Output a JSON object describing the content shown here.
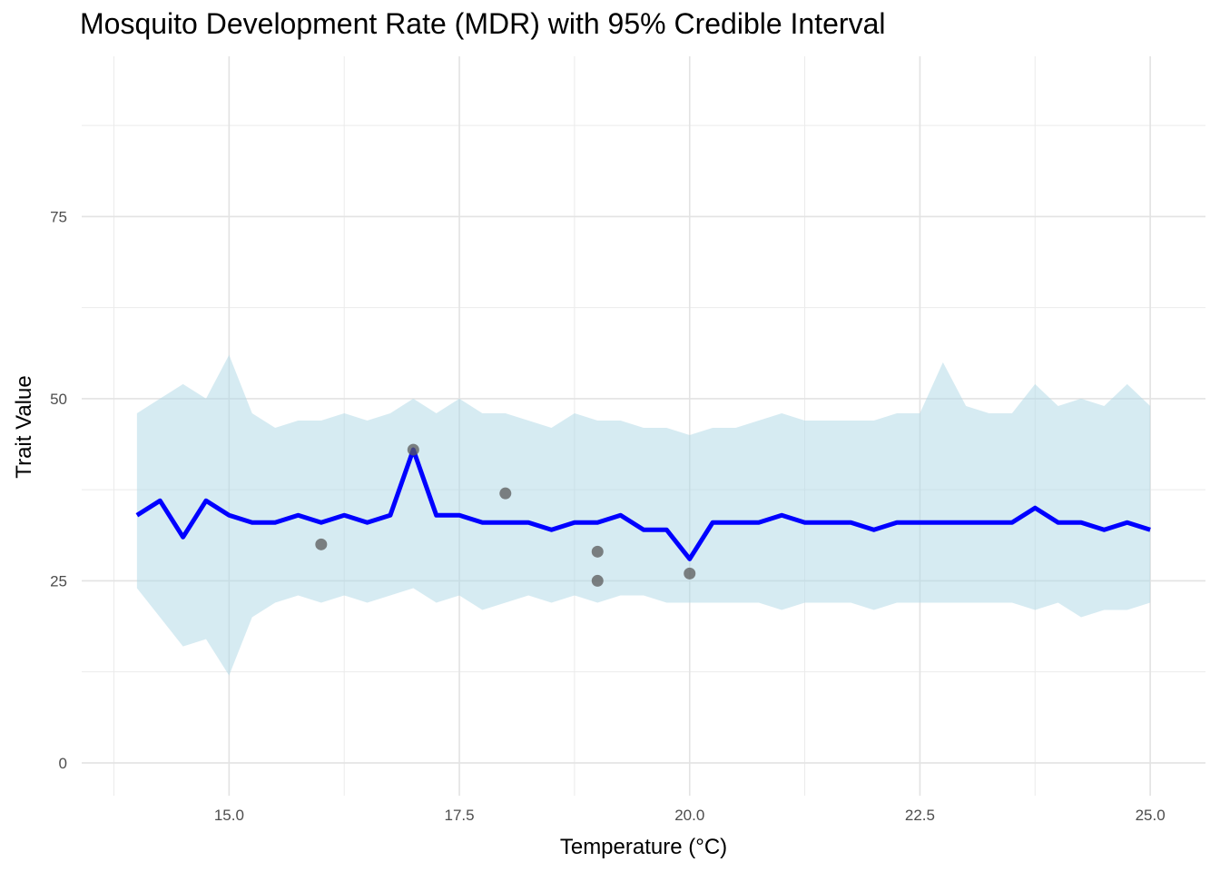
{
  "chart_data": {
    "type": "line",
    "title": "Mosquito Development Rate (MDR) with 95% Credible Interval",
    "xlabel": "Temperature (°C)",
    "ylabel": "Trait Value",
    "xlim": [
      13.4,
      25.6
    ],
    "ylim": [
      -4.5,
      97
    ],
    "x_ticks": [
      15.0,
      17.5,
      20.0,
      22.5,
      25.0
    ],
    "x_tick_labels": [
      "15.0",
      "17.5",
      "20.0",
      "22.5",
      "25.0"
    ],
    "y_ticks": [
      0,
      25,
      50,
      75
    ],
    "y_tick_labels": [
      "0",
      "25",
      "50",
      "75"
    ],
    "grid": true,
    "legend": "none",
    "ribbon_color": "#ADD8E6",
    "line_color": "#0000FF",
    "point_color": "#5a5a5a",
    "series": [
      {
        "kind": "line-with-ribbon",
        "x": [
          14.0,
          14.25,
          14.5,
          14.75,
          15.0,
          15.25,
          15.5,
          15.75,
          16.0,
          16.25,
          16.5,
          16.75,
          17.0,
          17.25,
          17.5,
          17.75,
          18.0,
          18.25,
          18.5,
          18.75,
          19.0,
          19.25,
          19.5,
          19.75,
          20.0,
          20.25,
          20.5,
          20.75,
          21.0,
          21.25,
          21.5,
          21.75,
          22.0,
          22.25,
          22.5,
          22.75,
          23.0,
          23.25,
          23.5,
          23.75,
          24.0,
          24.25,
          24.5,
          24.75,
          25.0
        ],
        "mean": [
          34,
          36,
          31,
          36,
          34,
          33,
          33,
          34,
          33,
          34,
          33,
          34,
          43,
          34,
          34,
          33,
          33,
          33,
          32,
          33,
          33,
          34,
          32,
          32,
          28,
          33,
          33,
          33,
          34,
          33,
          33,
          33,
          32,
          33,
          33,
          33,
          33,
          33,
          33,
          35,
          33,
          33,
          32,
          33,
          32
        ],
        "lower": [
          24,
          20,
          16,
          17,
          12,
          20,
          22,
          23,
          22,
          23,
          22,
          23,
          24,
          22,
          23,
          21,
          22,
          23,
          22,
          23,
          22,
          23,
          23,
          22,
          22,
          22,
          22,
          22,
          21,
          22,
          22,
          22,
          21,
          22,
          22,
          22,
          22,
          22,
          22,
          21,
          22,
          20,
          21,
          21,
          22
        ],
        "upper": [
          48,
          50,
          52,
          50,
          56,
          48,
          46,
          47,
          47,
          48,
          47,
          48,
          50,
          48,
          50,
          48,
          48,
          47,
          46,
          48,
          47,
          47,
          46,
          46,
          45,
          46,
          46,
          47,
          48,
          47,
          47,
          47,
          47,
          48,
          48,
          55,
          49,
          48,
          48,
          52,
          49,
          50,
          49,
          52,
          49
        ]
      },
      {
        "kind": "points",
        "x": [
          16.0,
          17.0,
          18.0,
          19.0,
          19.0,
          20.0
        ],
        "y": [
          30,
          43,
          37,
          29,
          25,
          26
        ]
      }
    ]
  }
}
